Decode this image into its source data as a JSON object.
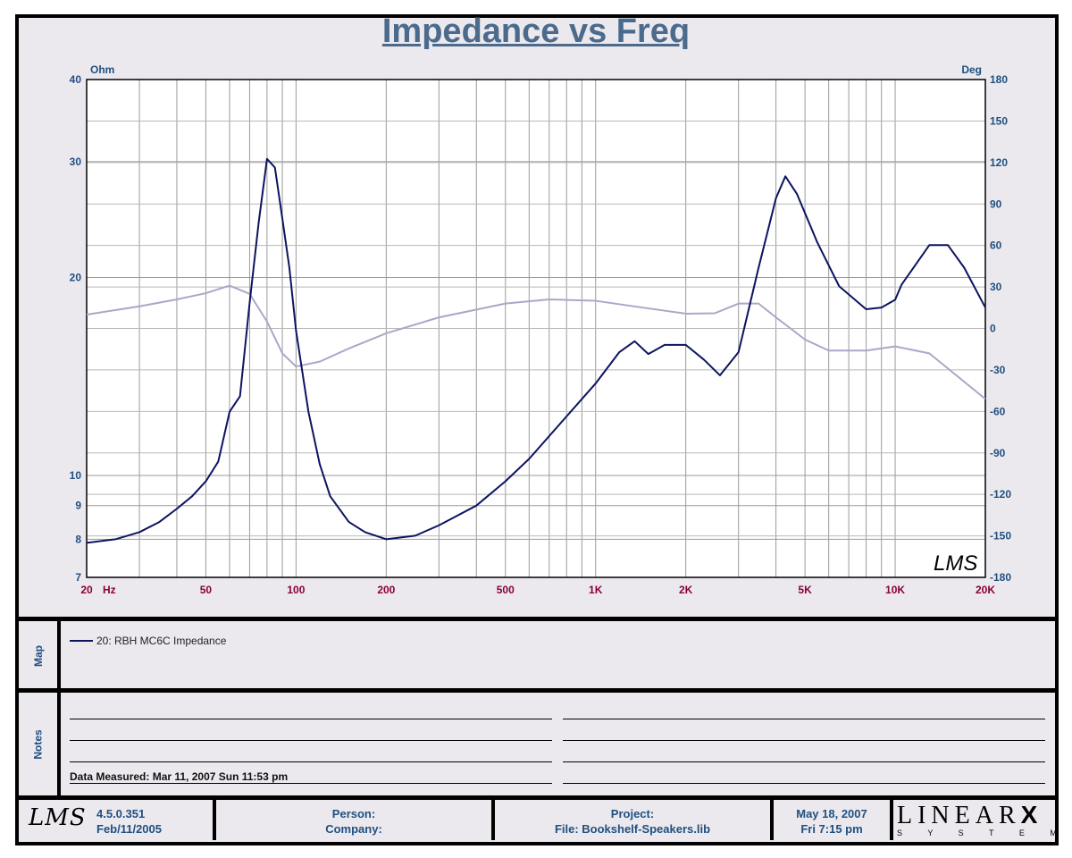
{
  "title": "Impedance vs Freq",
  "map_label": "Map",
  "notes_label": "Notes",
  "legend": [
    {
      "label": "20: RBH MC6C Impedance",
      "color": "#0c1460"
    }
  ],
  "data_measured": "Data Measured: Mar 11, 2007  Sun 11:53 pm",
  "footer": {
    "version": "4.5.0.351",
    "build_date": "Feb/11/2005",
    "person": "Person:",
    "company": "Company:",
    "project": "Project:",
    "file": "File: Bookshelf-Speakers.lib",
    "date": "May 18, 2007",
    "time": "Fri  7:15 pm",
    "brand": "LINEAR",
    "brand_x": "X",
    "brand_sub": "S Y S T E M S",
    "logo": "LMS"
  },
  "colors": {
    "impedance": "#0c1460",
    "phase": "#a9a8c8",
    "axis_text": "#1f4f80",
    "x_text": "#8b0038"
  },
  "chart_data": {
    "type": "line",
    "title": "Impedance vs Freq",
    "xlabel": "Hz",
    "ylabel": "Ohm",
    "y2label": "Deg",
    "xscale": "log",
    "yscale": "log",
    "xlim": [
      20,
      20000
    ],
    "ylim": [
      7,
      40
    ],
    "y2lim": [
      -180,
      180
    ],
    "x_ticks": [
      {
        "v": 20,
        "label": "20"
      },
      {
        "v": 50,
        "label": "50"
      },
      {
        "v": 100,
        "label": "100"
      },
      {
        "v": 200,
        "label": "200"
      },
      {
        "v": 500,
        "label": "500"
      },
      {
        "v": 1000,
        "label": "1K"
      },
      {
        "v": 2000,
        "label": "2K"
      },
      {
        "v": 5000,
        "label": "5K"
      },
      {
        "v": 10000,
        "label": "10K"
      },
      {
        "v": 20000,
        "label": "20K"
      }
    ],
    "y_ticks": [
      7,
      8,
      9,
      10,
      20,
      30,
      40
    ],
    "y2_ticks": [
      180,
      150,
      120,
      90,
      60,
      30,
      0,
      -30,
      -60,
      -90,
      -120,
      -150,
      -180
    ],
    "grid": true,
    "watermark": "LMS",
    "series": [
      {
        "name": "20: RBH MC6C Impedance",
        "axis": "left",
        "x": [
          20,
          25,
          30,
          35,
          40,
          45,
          50,
          55,
          60,
          65,
          70,
          75,
          80,
          85,
          90,
          95,
          100,
          110,
          120,
          130,
          150,
          170,
          200,
          250,
          300,
          400,
          500,
          600,
          800,
          1000,
          1200,
          1350,
          1500,
          1700,
          2000,
          2300,
          2600,
          3000,
          3500,
          4000,
          4300,
          4700,
          5500,
          6500,
          8000,
          9000,
          10000,
          10500,
          13000,
          15000,
          17000,
          20000
        ],
        "y": [
          7.9,
          8.0,
          8.2,
          8.5,
          8.9,
          9.3,
          9.8,
          10.5,
          12.5,
          13.2,
          18.3,
          24.2,
          30.3,
          29.4,
          24.6,
          20.7,
          16.6,
          12.5,
          10.4,
          9.3,
          8.5,
          8.2,
          8.0,
          8.1,
          8.4,
          9.0,
          9.8,
          10.6,
          12.3,
          13.8,
          15.4,
          16.0,
          15.3,
          15.8,
          15.8,
          15.0,
          14.2,
          15.4,
          20.7,
          26.4,
          28.5,
          26.8,
          22.6,
          19.4,
          17.9,
          18.0,
          18.5,
          19.5,
          22.4,
          22.4,
          20.7,
          18.0
        ]
      },
      {
        "name": "Phase",
        "axis": "right",
        "x": [
          20,
          30,
          40,
          50,
          60,
          70,
          80,
          90,
          100,
          120,
          150,
          200,
          300,
          500,
          700,
          1000,
          1500,
          2000,
          2500,
          3000,
          3500,
          4000,
          5000,
          6000,
          8000,
          10000,
          13000,
          20000
        ],
        "y": [
          10,
          16,
          21,
          25.5,
          31,
          25,
          5,
          -18,
          -27.5,
          -24,
          -14.5,
          -3.5,
          8,
          18,
          21,
          20,
          14.5,
          10.7,
          11,
          18,
          18,
          8,
          -8,
          -16,
          -16,
          -13,
          -18,
          -51
        ]
      }
    ]
  }
}
